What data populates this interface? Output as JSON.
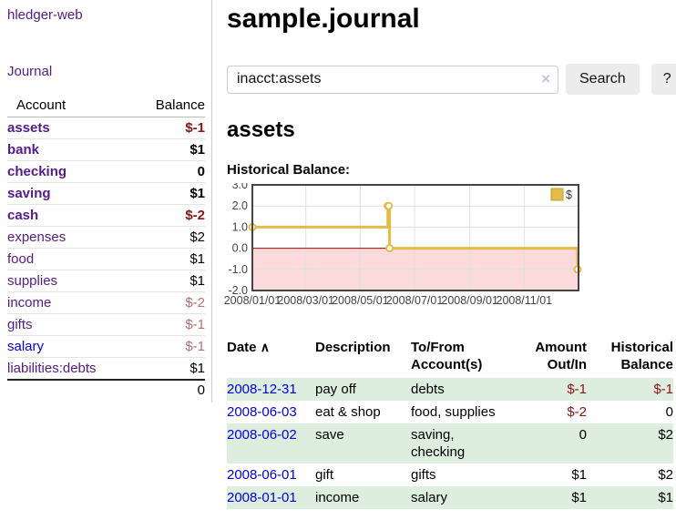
{
  "colors": {
    "link_purple": "#551a8b",
    "link_blue": "#0000dd",
    "negative_strong": "#8b1414",
    "negative_dim": "#b87070",
    "row_green": "#deeede",
    "chart_line": "#e3bb49",
    "chart_negative_fill": "#fadada",
    "chart_zero_line": "#9c0606"
  },
  "sidebar": {
    "app_title": "hledger-web",
    "journal_label": "Journal",
    "accounts": {
      "headers": {
        "account": "Account",
        "balance": "Balance"
      },
      "rows": [
        {
          "name": "assets",
          "balance": "$-1"
        },
        {
          "name": "bank",
          "balance": "$1"
        },
        {
          "name": "checking",
          "balance": "0"
        },
        {
          "name": "saving",
          "balance": "$1"
        },
        {
          "name": "cash",
          "balance": "$-2"
        },
        {
          "name": "expenses",
          "balance": "$2"
        },
        {
          "name": "food",
          "balance": "$1"
        },
        {
          "name": "supplies",
          "balance": "$1"
        },
        {
          "name": "income",
          "balance": "$-2"
        },
        {
          "name": "gifts",
          "balance": "$-1"
        },
        {
          "name": "salary",
          "balance": "$-1"
        },
        {
          "name": "liabilities:debts",
          "balance": "$1"
        }
      ],
      "total": "0"
    }
  },
  "main": {
    "title": "sample.journal",
    "search": {
      "value": "inacct:assets",
      "clear_icon": "×",
      "search_button": "Search",
      "help_button": "?"
    },
    "account_heading": "assets",
    "chart_label": "Historical Balance:"
  },
  "chart_data": {
    "type": "line",
    "step": true,
    "title": "Historical Balance",
    "x_range": [
      "2008-01-01",
      "2009-01-01"
    ],
    "ylim": [
      -2,
      3
    ],
    "y_ticks": [
      3,
      2,
      1,
      0,
      -1,
      -2
    ],
    "y_tick_labels": [
      "3.0",
      "2.0",
      "1.0",
      "0.0",
      "-1.0",
      "-2.0"
    ],
    "x_ticks": [
      "2008-01-01",
      "2008-03-01",
      "2008-05-01",
      "2008-07-01",
      "2008-09-01",
      "2008-11-01"
    ],
    "x_tick_labels": [
      "2008/01/01",
      "2008/03/01",
      "2008/05/01",
      "2008/07/01",
      "2008/09/01",
      "2008/11/01"
    ],
    "grid": true,
    "legend_position": "top-right",
    "negative_region_fill": "#fadada",
    "zero_line_color": "#9c0606",
    "series": [
      {
        "name": "$",
        "color": "#e3bb49",
        "points": [
          [
            "2008-01-01",
            1
          ],
          [
            "2008-06-01",
            2
          ],
          [
            "2008-06-02",
            2
          ],
          [
            "2008-06-03",
            0
          ],
          [
            "2008-12-31",
            -1
          ]
        ]
      }
    ]
  },
  "register": {
    "headers": {
      "date": "Date",
      "sort_icon": "∧",
      "description": "Description",
      "accounts": "To/From\nAccount(s)",
      "amount": "Amount\nOut/In",
      "balance": "Historical\nBalance"
    },
    "rows": [
      {
        "date": "2008-12-31",
        "description": "pay off",
        "accounts": "debts",
        "amount": "$-1",
        "balance": "$-1"
      },
      {
        "date": "2008-06-03",
        "description": "eat & shop",
        "accounts": "food, supplies",
        "amount": "$-2",
        "balance": "0"
      },
      {
        "date": "2008-06-02",
        "description": "save",
        "accounts": "saving,\nchecking",
        "amount": "0",
        "balance": "$2"
      },
      {
        "date": "2008-06-01",
        "description": "gift",
        "accounts": "gifts",
        "amount": "$1",
        "balance": "$2"
      },
      {
        "date": "2008-01-01",
        "description": "income",
        "accounts": "salary",
        "amount": "$1",
        "balance": "$1"
      }
    ]
  }
}
